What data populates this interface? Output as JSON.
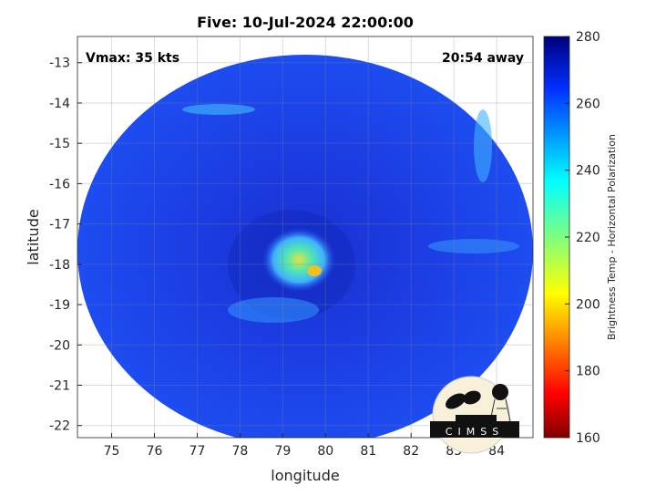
{
  "title": "Five: 10-Jul-2024 22:00:00",
  "annotations": {
    "vmax": "Vmax: 35 kts",
    "age": "20:54 away"
  },
  "xaxis": {
    "label": "longitude",
    "range": [
      74.2,
      84.85
    ],
    "ticks": [
      75,
      76,
      77,
      78,
      79,
      80,
      81,
      82,
      83,
      84
    ]
  },
  "yaxis": {
    "label": "latitude",
    "range": [
      -22.3,
      -12.35
    ],
    "ticks": [
      -13,
      -14,
      -15,
      -16,
      -17,
      -18,
      -19,
      -20,
      -21,
      -22
    ]
  },
  "colorbar": {
    "label": "Brightness Temp - Horizontal Polarization",
    "range": [
      160,
      280
    ],
    "ticks": [
      160,
      180,
      200,
      220,
      240,
      260,
      280
    ],
    "colormap": "jet-reversed"
  },
  "logo": {
    "text": "CIMSS"
  },
  "grid": true,
  "colors": {
    "background_swath": "#1c3ee0",
    "warm": "#0a1ea8",
    "cold_core": "#f0d020"
  }
}
